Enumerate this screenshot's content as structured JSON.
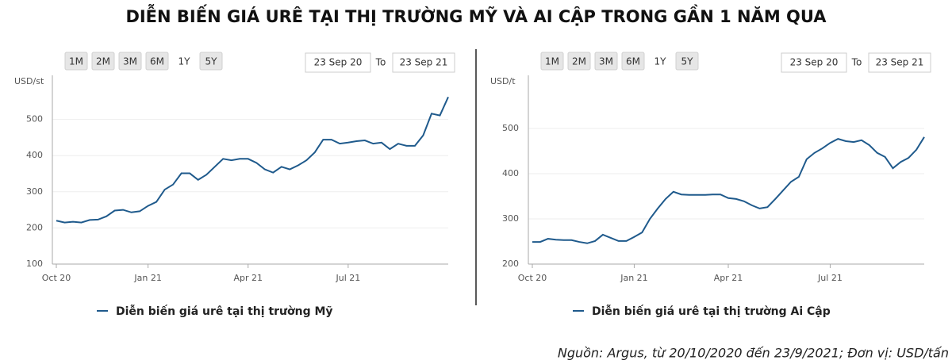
{
  "title": "DIỄN BIẾN GIÁ URÊ TẠI THỊ TRƯỜNG MỸ VÀ AI CẬP TRONG GẦN 1 NĂM QUA",
  "source": "Nguồn: Argus, từ 20/10/2020 đến 23/9/2021; Đơn vị: USD/tấn",
  "chart_data": [
    {
      "type": "line",
      "y_label": "USD/st",
      "range_buttons": [
        "1M",
        "2M",
        "3M",
        "6M",
        "1Y",
        "5Y"
      ],
      "selected_range": "1Y",
      "from": "23 Sep 20",
      "to_label": "To",
      "to": "23 Sep 21",
      "categories": [
        "Oct 20",
        null,
        null,
        null,
        null,
        null,
        null,
        null,
        null,
        null,
        null,
        "Jan 21",
        null,
        null,
        null,
        null,
        null,
        null,
        null,
        null,
        null,
        null,
        null,
        "Apr 21",
        null,
        null,
        null,
        null,
        null,
        null,
        null,
        null,
        null,
        null,
        null,
        "Jul 21",
        null,
        null,
        null,
        null,
        null,
        null,
        null,
        null,
        null,
        null,
        null,
        null
      ],
      "series": [
        {
          "name": "Diễn biến giá urê tại thị trường Mỹ",
          "color": "#1f5a8c",
          "values": [
            220,
            215,
            217,
            215,
            222,
            223,
            232,
            248,
            250,
            243,
            246,
            261,
            272,
            306,
            320,
            351,
            351,
            333,
            347,
            369,
            391,
            387,
            391,
            391,
            380,
            362,
            353,
            369,
            362,
            373,
            387,
            409,
            444,
            444,
            433,
            436,
            440,
            442,
            433,
            436,
            418,
            433,
            427,
            427,
            456,
            516,
            511,
            562
          ]
        }
      ],
      "ylim": [
        100,
        600
      ],
      "yticks": [
        100,
        200,
        300,
        400,
        500
      ],
      "grid": true
    },
    {
      "type": "line",
      "y_label": "USD/t",
      "range_buttons": [
        "1M",
        "2M",
        "3M",
        "6M",
        "1Y",
        "5Y"
      ],
      "selected_range": "1Y",
      "from": "23 Sep 20",
      "to_label": "To",
      "to": "23 Sep 21",
      "categories": [
        "Oct 20",
        null,
        null,
        null,
        null,
        null,
        null,
        null,
        null,
        null,
        null,
        null,
        null,
        "Jan 21",
        null,
        null,
        null,
        null,
        null,
        null,
        null,
        null,
        null,
        null,
        null,
        "Apr 21",
        null,
        null,
        null,
        null,
        null,
        null,
        null,
        null,
        null,
        null,
        null,
        null,
        "Jul 21",
        null,
        null,
        null,
        null,
        null,
        null,
        null,
        null,
        null,
        null,
        null,
        null
      ],
      "series": [
        {
          "name": "Diễn biến giá urê tại thị trường Ai Cập",
          "color": "#1f5a8c",
          "values": [
            249,
            249,
            256,
            254,
            253,
            253,
            249,
            246,
            251,
            265,
            258,
            251,
            251,
            260,
            270,
            300,
            323,
            344,
            360,
            354,
            353,
            353,
            353,
            354,
            354,
            346,
            344,
            339,
            330,
            323,
            326,
            344,
            363,
            382,
            393,
            432,
            446,
            456,
            468,
            477,
            472,
            470,
            474,
            463,
            446,
            437,
            412,
            426,
            435,
            453,
            481
          ]
        }
      ],
      "ylim": [
        200,
        600
      ],
      "yticks": [
        200,
        300,
        400,
        500
      ],
      "grid": true
    }
  ]
}
